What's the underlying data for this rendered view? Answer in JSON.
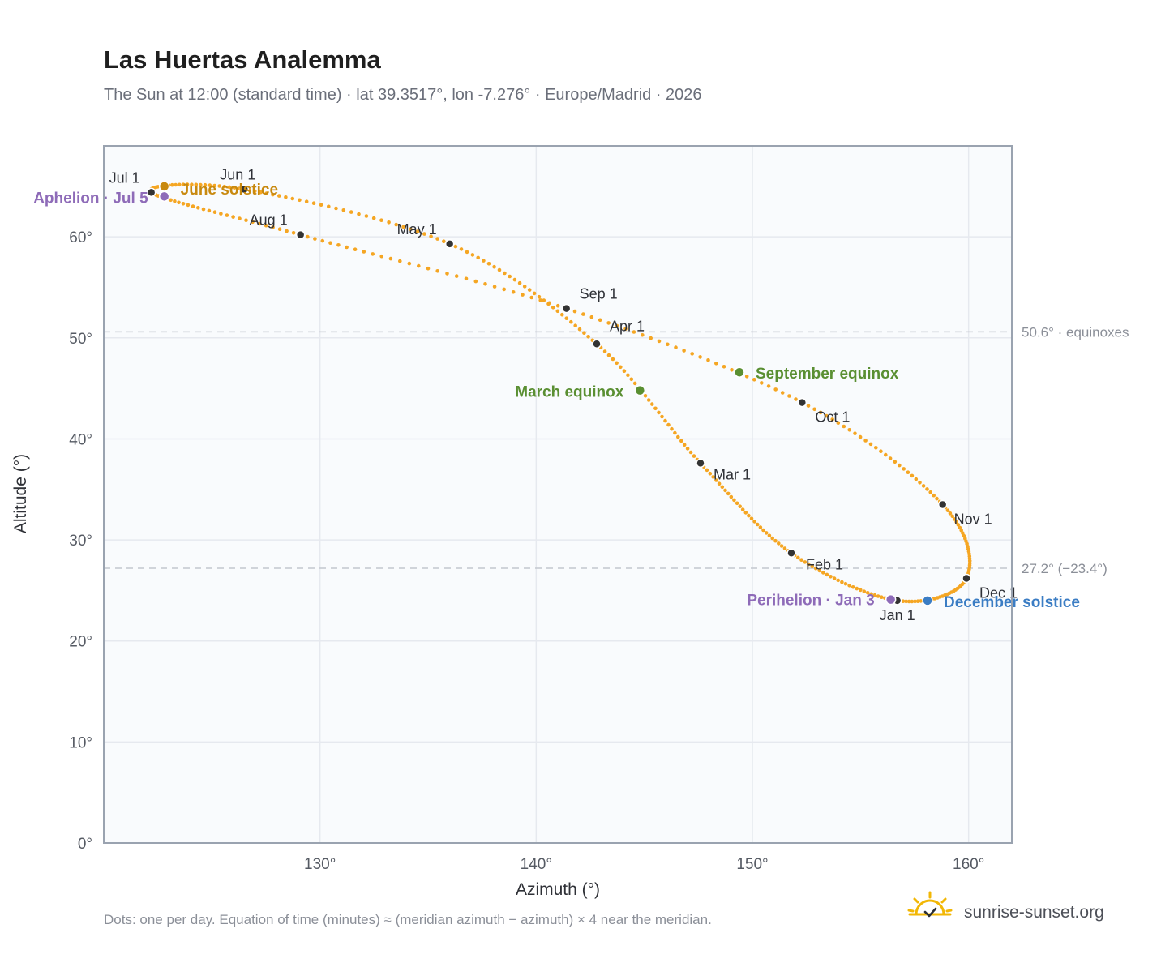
{
  "header": {
    "title": "Las Huertas Analemma",
    "subtitle": "The Sun at 12:00 (standard time) · lat 39.3517°, lon -7.276° · Europe/Madrid · 2026"
  },
  "footer": {
    "note": "Dots: one per day. Equation of time (minutes) ≈ (meridian azimuth − azimuth) × 4 near the meridian.",
    "brand": "sunrise-sunset.org"
  },
  "colors": {
    "path": "#f5a623",
    "month_dot": "#333333",
    "equinox": "#5a8f32",
    "june_solstice": "#c8890f",
    "december_solstice": "#3b7dc4",
    "apsis": "#8e6bb8",
    "grid": "#e6e9ef",
    "plot_bg": "#f9fbfd",
    "frame": "#9aa3b0",
    "ref_line": "#c3c8cf"
  },
  "chart_data": {
    "type": "scatter",
    "title": "Las Huertas Analemma",
    "xlabel": "Azimuth (°)",
    "ylabel": "Altitude (°)",
    "xlim": [
      120,
      162
    ],
    "ylim": [
      0,
      69
    ],
    "x_ticks": [
      130,
      140,
      150,
      160
    ],
    "x_tick_labels": [
      "130°",
      "140°",
      "150°",
      "160°"
    ],
    "y_ticks": [
      0,
      10,
      20,
      30,
      40,
      50,
      60
    ],
    "y_tick_labels": [
      "0°",
      "10°",
      "20°",
      "30°",
      "40°",
      "50°",
      "60°"
    ],
    "grid": true,
    "month_points": [
      {
        "label": "Jan 1",
        "azimuth": 156.7,
        "altitude": 24.0
      },
      {
        "label": "Feb 1",
        "azimuth": 151.8,
        "altitude": 28.7
      },
      {
        "label": "Mar 1",
        "azimuth": 147.6,
        "altitude": 37.6
      },
      {
        "label": "Apr 1",
        "azimuth": 142.8,
        "altitude": 49.4
      },
      {
        "label": "May 1",
        "azimuth": 136.0,
        "altitude": 59.3
      },
      {
        "label": "Jun 1",
        "azimuth": 126.5,
        "altitude": 64.7
      },
      {
        "label": "Jul 1",
        "azimuth": 122.2,
        "altitude": 64.4
      },
      {
        "label": "Aug 1",
        "azimuth": 129.1,
        "altitude": 60.2
      },
      {
        "label": "Sep 1",
        "azimuth": 141.4,
        "altitude": 52.9
      },
      {
        "label": "Oct 1",
        "azimuth": 152.3,
        "altitude": 43.6
      },
      {
        "label": "Nov 1",
        "azimuth": 158.8,
        "altitude": 33.5
      },
      {
        "label": "Dec 1",
        "azimuth": 159.9,
        "altitude": 26.2
      }
    ],
    "events": [
      {
        "label": "March equinox",
        "azimuth": 144.8,
        "altitude": 44.8,
        "color": "#5a8f32"
      },
      {
        "label": "June solstice",
        "azimuth": 122.8,
        "altitude": 65.0,
        "color": "#c8890f"
      },
      {
        "label": "September equinox",
        "azimuth": 149.4,
        "altitude": 46.6,
        "color": "#5a8f32"
      },
      {
        "label": "December solstice",
        "azimuth": 158.1,
        "altitude": 24.0,
        "color": "#3b7dc4"
      },
      {
        "label": "Perihelion · Jan 3",
        "azimuth": 156.4,
        "altitude": 24.1,
        "color": "#8e6bb8"
      },
      {
        "label": "Aphelion · Jul 5",
        "azimuth": 122.8,
        "altitude": 64.0,
        "color": "#8e6bb8"
      }
    ],
    "reference_lines": [
      {
        "altitude": 50.6,
        "label": "50.6° · equinoxes"
      },
      {
        "altitude": 27.2,
        "label": "27.2° (−23.4°)"
      }
    ]
  }
}
